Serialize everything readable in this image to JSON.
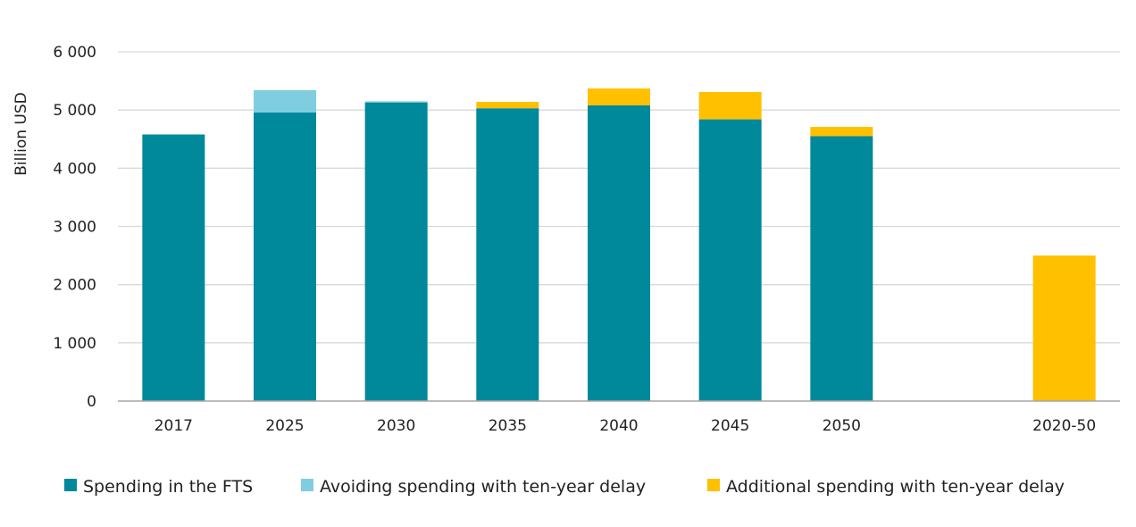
{
  "chart_data": {
    "type": "bar",
    "stacked": true,
    "categories": [
      "2017",
      "2025",
      "2030",
      "2035",
      "2040",
      "2045",
      "2050",
      "2020-50"
    ],
    "series": [
      {
        "name": "Spending in the FTS",
        "color": "#00889b",
        "values": [
          4580,
          4960,
          5130,
          5030,
          5080,
          4840,
          4550,
          0
        ]
      },
      {
        "name": "Avoiding spending with ten-year delay",
        "color": "#7fcde0",
        "values": [
          0,
          380,
          20,
          0,
          0,
          0,
          0,
          0
        ]
      },
      {
        "name": "Additional spending with ten-year delay",
        "color": "#ffc000",
        "values": [
          0,
          0,
          0,
          110,
          290,
          470,
          160,
          2500
        ]
      }
    ],
    "ylabel": "Billion USD",
    "ylim": [
      0,
      6000
    ],
    "yticks": [
      0,
      1000,
      2000,
      3000,
      4000,
      5000,
      6000
    ],
    "ytick_labels": [
      "0",
      "1 000",
      "2 000",
      "3 000",
      "4 000",
      "5 000",
      "6 000"
    ],
    "grid": true,
    "legend_position": "bottom"
  }
}
